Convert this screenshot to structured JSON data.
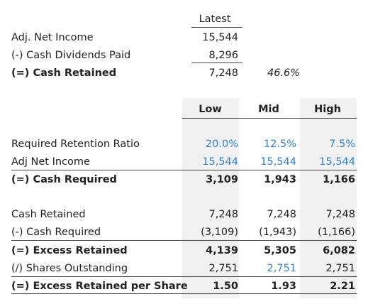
{
  "top": {
    "header": "Latest",
    "rows": [
      {
        "label": "Adj. Net Income",
        "value": "15,544",
        "bold": false
      },
      {
        "label": "(-) Cash Dividends Paid",
        "value": "8,296",
        "bold": false
      },
      {
        "label": "(=) Cash Retained",
        "value": "7,248",
        "bold": true,
        "pct": "46.6%"
      }
    ]
  },
  "scenarios": {
    "headers": [
      "Low",
      "Mid",
      "High"
    ],
    "block1": [
      {
        "label": "Required Retention Ratio",
        "values": [
          "20.0%",
          "12.5%",
          "7.5%"
        ],
        "bold": false,
        "blue": [
          true,
          true,
          true
        ]
      },
      {
        "label": "Adj Net Income",
        "values": [
          "15,544",
          "15,544",
          "15,544"
        ],
        "bold": false,
        "blue": [
          true,
          true,
          true
        ]
      },
      {
        "label": "(=) Cash Required",
        "values": [
          "3,109",
          "1,943",
          "1,166"
        ],
        "bold": true,
        "blue": [
          false,
          false,
          false
        ]
      }
    ],
    "block2": [
      {
        "label": "Cash Retained",
        "values": [
          "7,248",
          "7,248",
          "7,248"
        ],
        "bold": false,
        "blue": [
          false,
          false,
          false
        ]
      },
      {
        "label": "(-) Cash Required",
        "values": [
          "(3,109)",
          "(1,943)",
          "(1,166)"
        ],
        "bold": false,
        "blue": [
          false,
          false,
          false
        ]
      },
      {
        "label": "(=) Excess Retained",
        "values": [
          "4,139",
          "5,305",
          "6,082"
        ],
        "bold": true,
        "blue": [
          false,
          false,
          false
        ]
      },
      {
        "label": "(/) Shares Outstanding",
        "values": [
          "2,751",
          "2,751",
          "2,751"
        ],
        "bold": false,
        "blue": [
          false,
          true,
          false
        ]
      },
      {
        "label": "(=) Excess Retained per Share",
        "values": [
          "1.50",
          "1.93",
          "2.21"
        ],
        "bold": true,
        "blue": [
          false,
          false,
          false
        ]
      }
    ]
  },
  "colors": {
    "input_blue": "#2f80d8",
    "shade": "#f1f1f1"
  }
}
